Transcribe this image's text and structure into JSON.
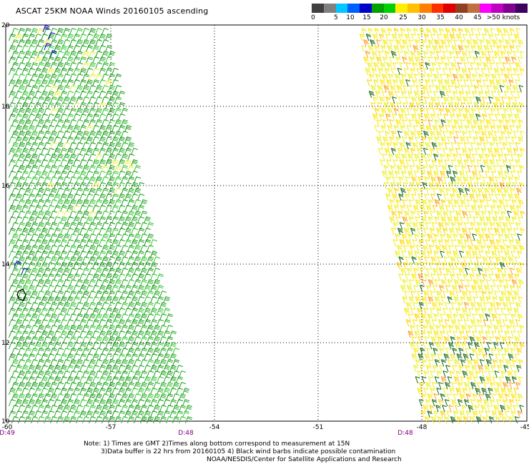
{
  "title": "ASCAT 25KM NOAA Winds 20160105 ascending",
  "legend": {
    "labels": [
      "0",
      "5",
      "10",
      "15",
      "20",
      "25",
      "30",
      "35",
      "40",
      "45",
      ">50 knots"
    ],
    "colors": [
      "#404040",
      "#808080",
      "#00c8ff",
      "#0060ff",
      "#0000c8",
      "#00a000",
      "#00d000",
      "#ffee00",
      "#ffc000",
      "#ff8000",
      "#ff3000",
      "#e00000",
      "#904020",
      "#c07040",
      "#ff00ff",
      "#c000c0",
      "#800090",
      "#400060"
    ]
  },
  "map": {
    "lat_labels": [
      "20",
      "18",
      "16",
      "14",
      "12",
      "10"
    ],
    "lon_labels": [
      "-60",
      "-57",
      "-54",
      "-51",
      "-48",
      "-45"
    ],
    "time_labels": [
      "D:49",
      "D:48",
      "D:48"
    ]
  },
  "notes": {
    "line1": "Note: 1) Times are GMT 2)Times along bottom correspond to measurement at 15N",
    "line2": "3)Data buffer is 22 hrs from 20160105 4) Black wind barbs indicate possible contamination",
    "line3": "NOAA/NESDIS/Center for Satellite Applications and Research"
  },
  "swaths": {
    "left": {
      "dominant_color": "#22a822",
      "secondary_color": "#eeee44"
    },
    "right": {
      "dominant_color": "#eeee22",
      "secondary_color": "#116611"
    }
  }
}
